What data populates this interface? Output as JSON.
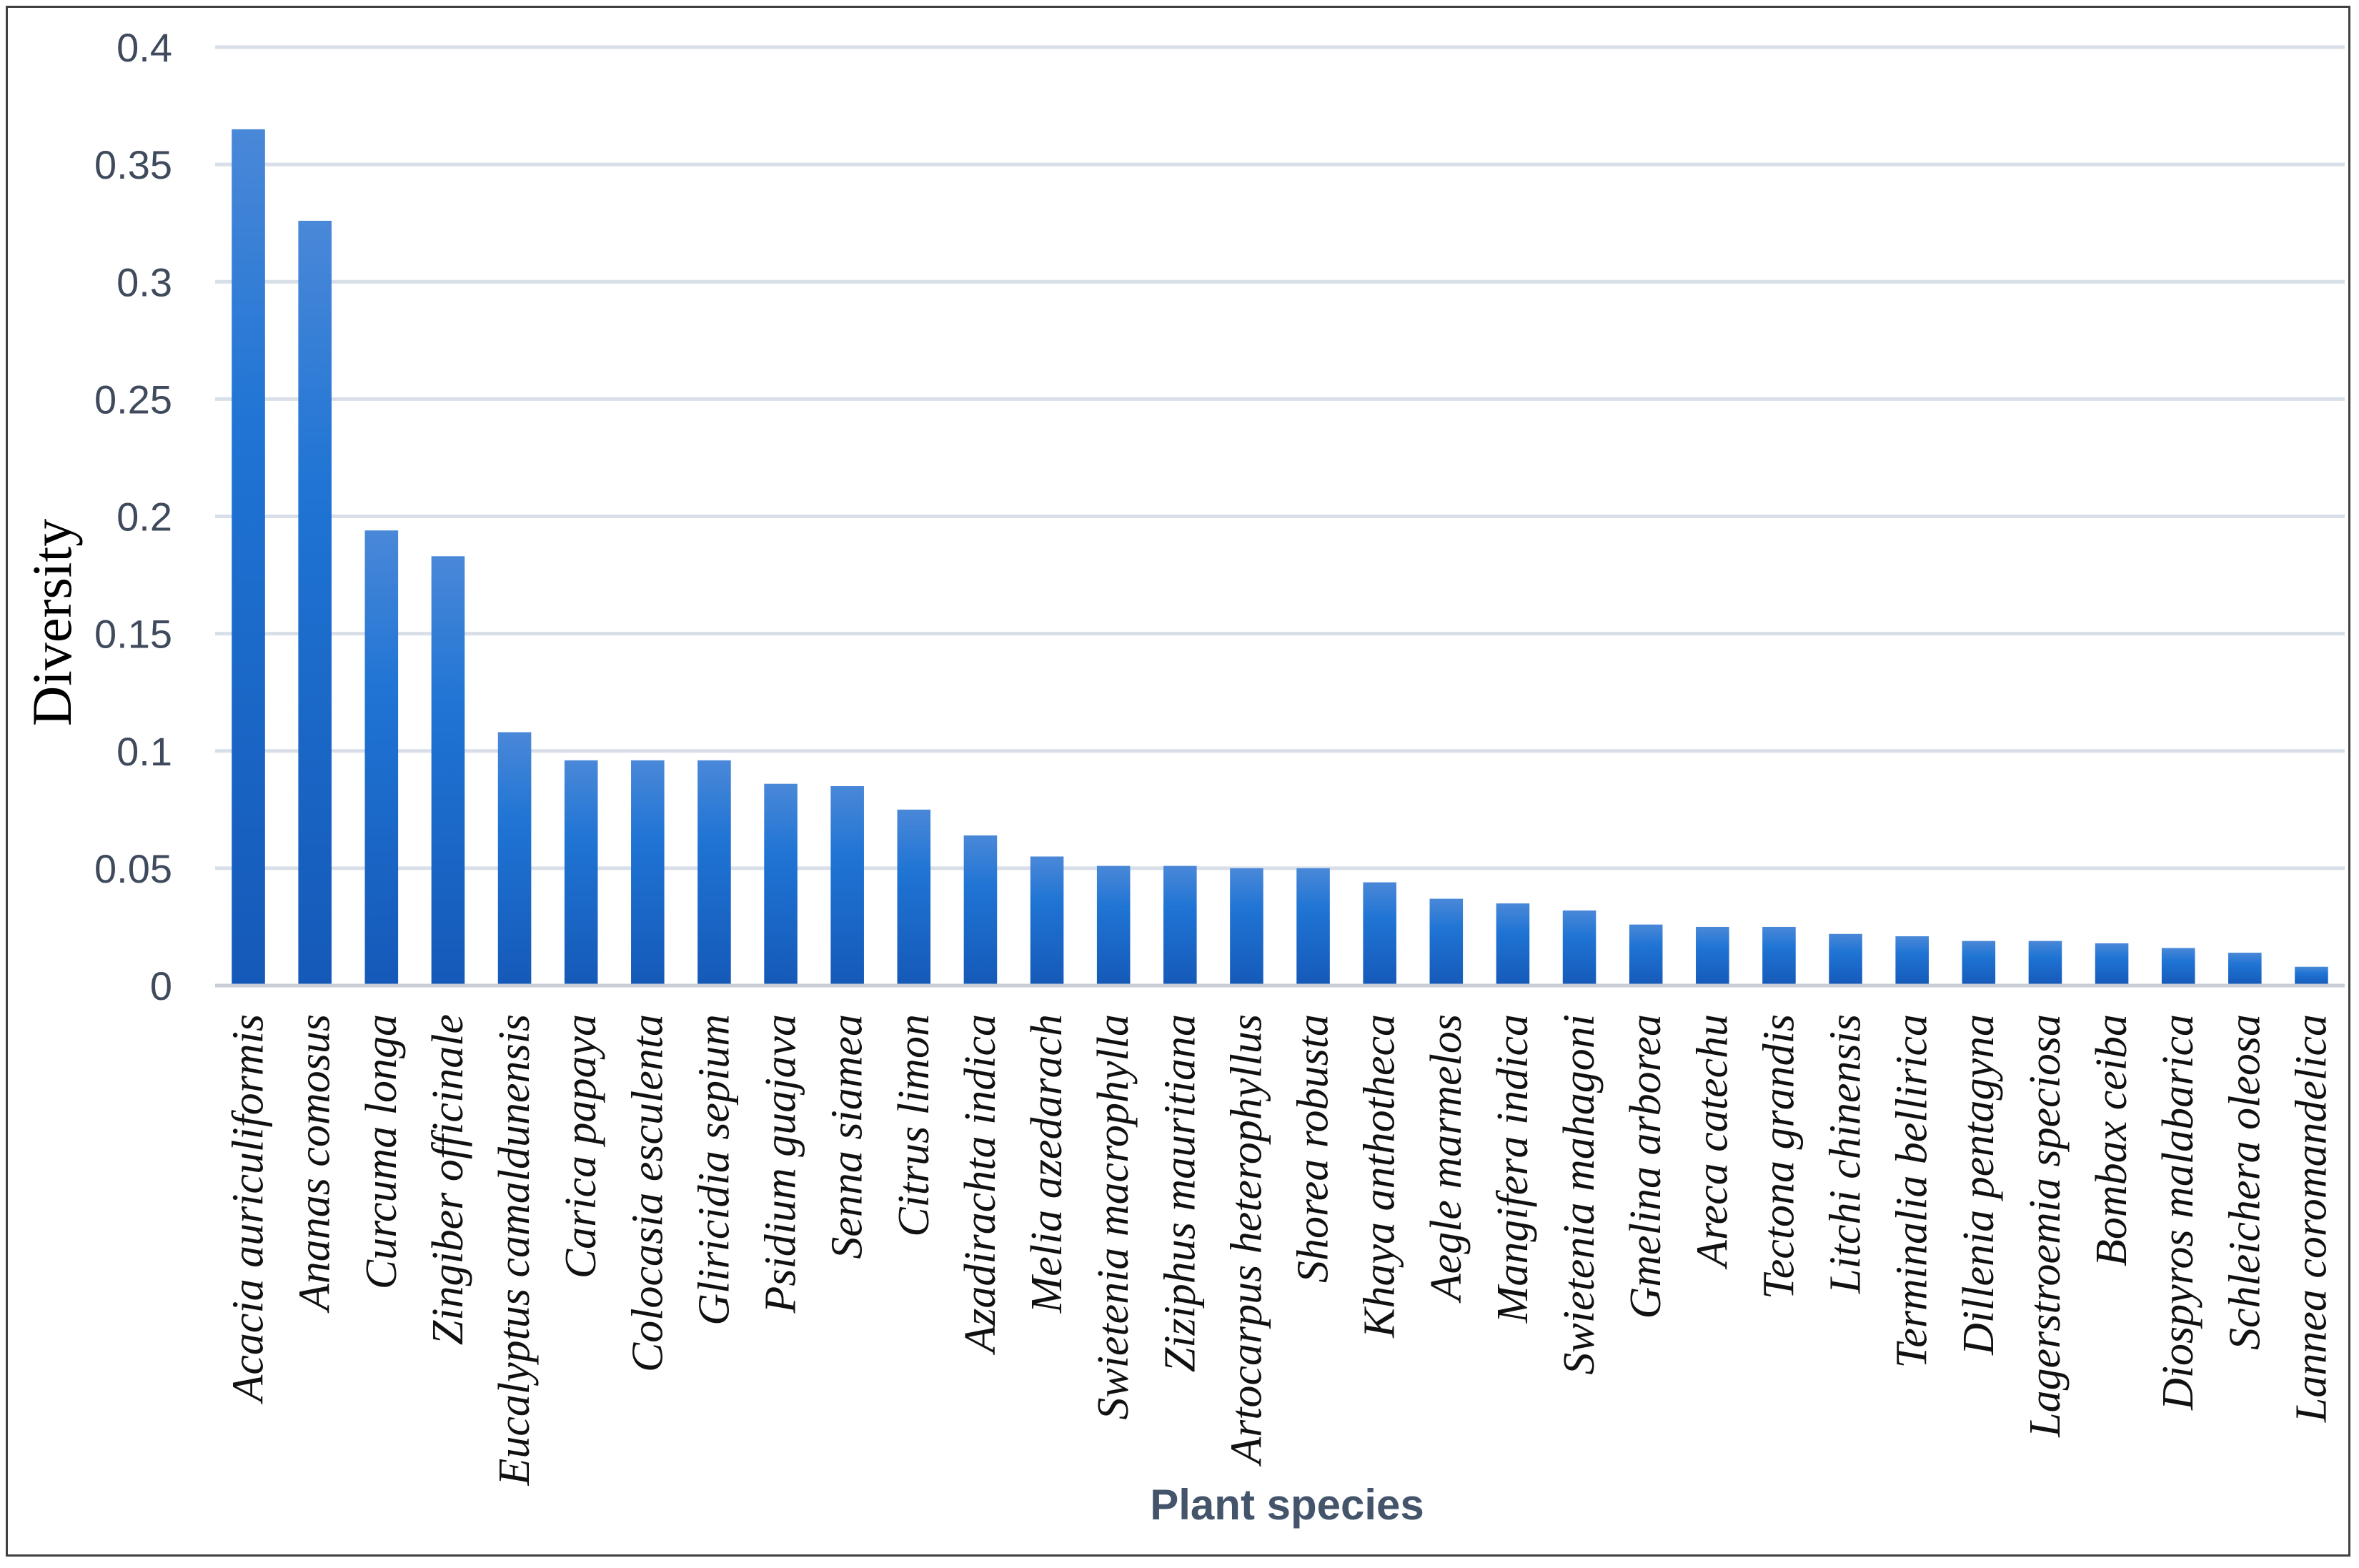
{
  "chart_data": {
    "type": "bar",
    "xlabel": "Plant species",
    "ylabel": "Diversity",
    "ylim": [
      0,
      0.4
    ],
    "yticks": [
      "0",
      "0.05",
      "0.1",
      "0.15",
      "0.2",
      "0.25",
      "0.3",
      "0.35",
      "0.4"
    ],
    "grid": true,
    "bar_color": "#1f6fd0",
    "categories": [
      "Acacia auriculiformis",
      "Ananas comosus",
      "Curcuma longa",
      "Zingiber officinale",
      "Eucalyptus camaldunensis",
      "Carica papaya",
      "Colocasia esculenta",
      "Gliricidia sepium",
      "Psidium guajava",
      "Senna siamea",
      "Citrus limon",
      "Azadirachta indica",
      "Melia azedarach",
      "Swietenia macrophylla",
      "Ziziphus mauritiana",
      "Artocarpus heterophyllus",
      "Shorea robusta",
      "Khaya anthotheca",
      "Aegle marmelos",
      "Mangifera indica",
      "Swietenia mahagoni",
      "Gmelina arborea",
      "Areca catechu",
      "Tectona grandis",
      "Litchi chinensis",
      "Terminalia bellirica",
      "Dillenia pentagyna",
      "Lagerstroemia speciosa",
      "Bombax ceiba",
      "Diospyros malabarica",
      "Schleichera oleosa",
      "Lannea coromandelica"
    ],
    "values": [
      0.365,
      0.326,
      0.194,
      0.183,
      0.108,
      0.096,
      0.096,
      0.096,
      0.086,
      0.085,
      0.075,
      0.064,
      0.055,
      0.051,
      0.051,
      0.05,
      0.05,
      0.044,
      0.037,
      0.035,
      0.032,
      0.026,
      0.025,
      0.025,
      0.022,
      0.021,
      0.019,
      0.019,
      0.018,
      0.016,
      0.014,
      0.008
    ]
  }
}
